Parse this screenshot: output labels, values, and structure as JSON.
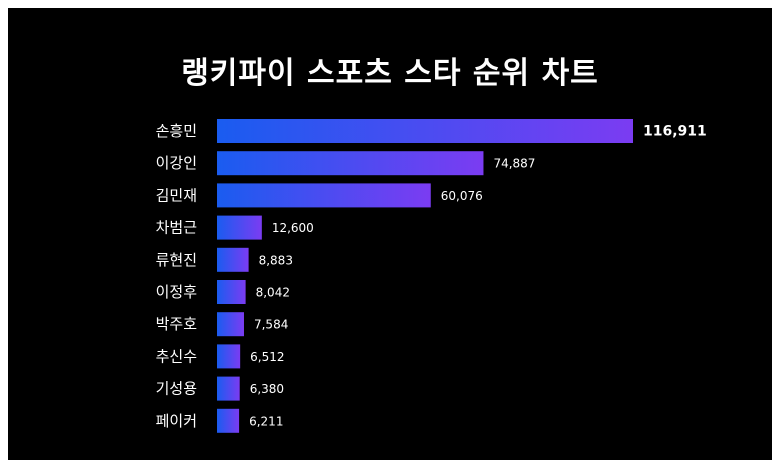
{
  "chart_data": {
    "type": "bar",
    "orientation": "horizontal",
    "title": "랭키파이 스포츠 스타 순위 차트",
    "categories": [
      "손흥민",
      "이강인",
      "김민재",
      "차범근",
      "류현진",
      "이정후",
      "박주호",
      "추신수",
      "기성용",
      "페이커"
    ],
    "values": [
      116911,
      74887,
      60076,
      12600,
      8883,
      8042,
      7584,
      6512,
      6380,
      6211
    ],
    "value_labels": [
      "116,911",
      "74,887",
      "60,076",
      "12,600",
      "8,883",
      "8,042",
      "7,584",
      "6,512",
      "6,380",
      "6,211"
    ],
    "xlim": [
      0,
      116911
    ],
    "grid": false,
    "colors": {
      "background": "#000000",
      "frame": "#ffffff",
      "bar_start": "#1a5cf0",
      "bar_end": "#7b3cf2",
      "text": "#ffffff"
    }
  }
}
